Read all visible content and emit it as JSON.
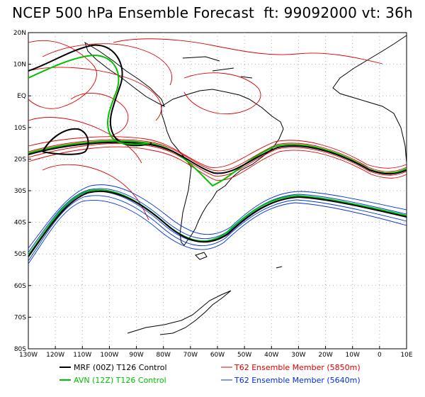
{
  "title": "NCEP 500 hPa Ensemble Forecast  ft: 99092000 vt: 36h",
  "lat_labels": [
    "20N",
    "10N",
    "EQ",
    "10S",
    "20S",
    "30S",
    "40S",
    "50S",
    "60S",
    "70S",
    "80S"
  ],
  "lon_labels": [
    "130W",
    "120W",
    "110W",
    "100W",
    "90W",
    "80W",
    "70W",
    "60W",
    "50W",
    "40W",
    "30W",
    "20W",
    "10W",
    "0",
    "10E"
  ],
  "legend": [
    {
      "label": "MRF (00Z) T126 Control",
      "color": "#000000"
    },
    {
      "label": "AVN (12Z) T126 Control",
      "color": "#00c000"
    },
    {
      "label": "T62 Ensemble Member (5850m)",
      "color": "#e00000"
    },
    {
      "label": "T62 Ensemble Member (5640m)",
      "color": "#0030e0"
    }
  ],
  "colors": {
    "mrf": "#000000",
    "avn": "#00c000",
    "ens5850": "#e00000",
    "ens5640": "#0030e0",
    "coast": "#000000",
    "grid": "#b0b0b0"
  }
}
